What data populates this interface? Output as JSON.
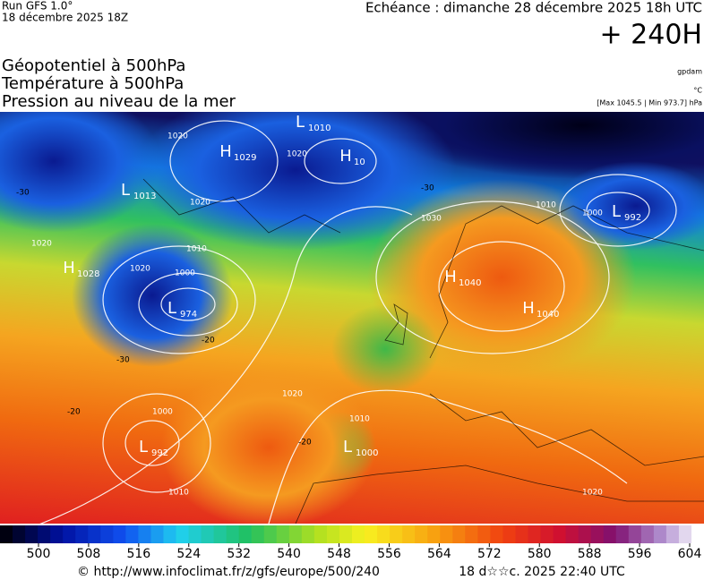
{
  "header": {
    "run": "Run GFS 1.0°",
    "date": "18 décembre 2025 18Z",
    "echeance": "Echéance : dimanche 28 décembre 2025 18h UTC",
    "lead": "+ 240H"
  },
  "titles": [
    "Géopotentiel à 500hPa",
    "Température à 500hPa",
    "Pression au niveau de la mer"
  ],
  "units": [
    "gpdam",
    "°C",
    "[Max 1045.5 | Min 973.7] hPa"
  ],
  "centers": [
    {
      "symbol": "H",
      "value": "1029"
    },
    {
      "symbol": "H",
      "value": "10"
    },
    {
      "symbol": "L",
      "value": "1010"
    },
    {
      "symbol": "L",
      "value": "1013"
    },
    {
      "symbol": "H",
      "value": "1028"
    },
    {
      "symbol": "L",
      "value": "974"
    },
    {
      "symbol": "L",
      "value": "992"
    },
    {
      "symbol": "L",
      "value": "1000"
    },
    {
      "symbol": "H",
      "value": "1040"
    },
    {
      "symbol": "H",
      "value": "1040"
    },
    {
      "symbol": "L",
      "value": "992"
    }
  ],
  "isobar_labels": [
    "1020",
    "1020",
    "1010",
    "1000",
    "1020",
    "1030",
    "1020",
    "1010",
    "1000",
    "1010",
    "1020",
    "1010",
    "1000",
    "1020",
    "1020"
  ],
  "temperature_labels": [
    "-30",
    "-30",
    "-20",
    "-20",
    "-20",
    "-30"
  ],
  "colorbar": {
    "ticks": [
      500,
      508,
      516,
      524,
      532,
      540,
      548,
      556,
      564,
      572,
      580,
      588,
      596,
      604
    ]
  },
  "footer": {
    "source": "© http://www.infoclimat.fr/z/gfs/europe/500/240",
    "timestamp": "18 d☆☆c. 2025 22:40 UTC"
  }
}
